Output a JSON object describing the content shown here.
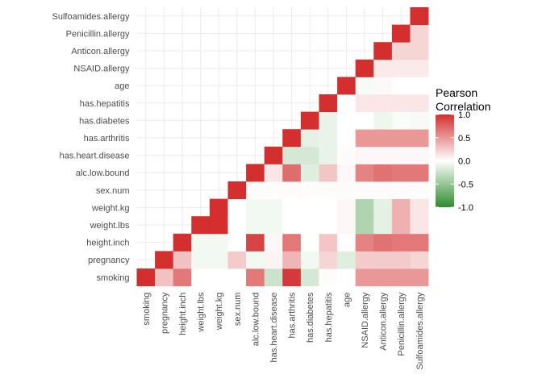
{
  "chart_data": {
    "type": "heatmap",
    "variables": [
      "smoking",
      "pregnancy",
      "height.inch",
      "weight.lbs",
      "weight.kg",
      "sex.num",
      "alc.low.bound",
      "has.heart.disease",
      "has.arthritis",
      "has.diabetes",
      "has.hepatitis",
      "age",
      "NSAID.allergy",
      "Anticon.allergy",
      "Penicillin.allergy",
      "Sulfoamides.allergy"
    ],
    "matrix": [
      [
        1.0,
        0.3,
        0.65,
        0,
        0,
        0,
        0.65,
        -0.25,
        0.95,
        -0.2,
        0.02,
        0,
        0.5,
        0.5,
        0.5,
        0.5
      ],
      [
        null,
        1.0,
        0.3,
        -0.06,
        -0.06,
        0.25,
        -0.06,
        0.06,
        0.35,
        -0.06,
        0.2,
        -0.15,
        0.25,
        0.25,
        0.25,
        0.2
      ],
      [
        null,
        null,
        1.0,
        -0.06,
        -0.06,
        0,
        0.9,
        0.04,
        0.65,
        0,
        0.28,
        0,
        0.6,
        0.68,
        0.65,
        0.65
      ],
      [
        null,
        null,
        null,
        1.0,
        1.0,
        0,
        -0.06,
        -0.06,
        0,
        0,
        0,
        0.04,
        -0.38,
        -0.12,
        0.38,
        0.12
      ],
      [
        null,
        null,
        null,
        null,
        1.0,
        0,
        -0.06,
        -0.06,
        0,
        0,
        0,
        0.04,
        -0.38,
        -0.12,
        0.38,
        0.12
      ],
      [
        null,
        null,
        null,
        null,
        null,
        1.0,
        0.02,
        0.02,
        0.02,
        0.02,
        0.02,
        0.02,
        0.02,
        0.02,
        0.02,
        0.02
      ],
      [
        null,
        null,
        null,
        null,
        null,
        null,
        1.0,
        0.12,
        0.7,
        -0.15,
        0.28,
        0.04,
        0.6,
        0.68,
        0.65,
        0.65
      ],
      [
        null,
        null,
        null,
        null,
        null,
        null,
        null,
        1.0,
        -0.2,
        -0.2,
        -0.1,
        0.02,
        0.04,
        0.04,
        0.04,
        0.04
      ],
      [
        null,
        null,
        null,
        null,
        null,
        null,
        null,
        null,
        1.0,
        -0.12,
        -0.1,
        0,
        0.5,
        0.5,
        0.5,
        0.5
      ],
      [
        null,
        null,
        null,
        null,
        null,
        null,
        null,
        null,
        null,
        1.0,
        -0.1,
        0,
        0,
        -0.08,
        -0.03,
        -0.04
      ],
      [
        null,
        null,
        null,
        null,
        null,
        null,
        null,
        null,
        null,
        null,
        1.0,
        0,
        0.12,
        0.12,
        0.12,
        0.12
      ],
      [
        null,
        null,
        null,
        null,
        null,
        null,
        null,
        null,
        null,
        null,
        null,
        1.0,
        -0.04,
        0.03,
        0,
        0
      ],
      [
        null,
        null,
        null,
        null,
        null,
        null,
        null,
        null,
        null,
        null,
        null,
        null,
        1.0,
        0.1,
        0.1,
        0.1
      ],
      [
        null,
        null,
        null,
        null,
        null,
        null,
        null,
        null,
        null,
        null,
        null,
        null,
        null,
        1.0,
        0.2,
        0.2
      ],
      [
        null,
        null,
        null,
        null,
        null,
        null,
        null,
        null,
        null,
        null,
        null,
        null,
        null,
        null,
        1.0,
        0.2
      ],
      [
        null,
        null,
        null,
        null,
        null,
        null,
        null,
        null,
        null,
        null,
        null,
        null,
        null,
        null,
        null,
        1.0
      ]
    ],
    "legend": {
      "title": "Pearson\nCorrelation",
      "ticks": [
        "1.0",
        "0.5",
        "0.0",
        "-0.5",
        "-1.0"
      ],
      "tick_values": [
        1.0,
        0.5,
        0.0,
        -0.5,
        -1.0
      ],
      "range": [
        -1,
        1
      ],
      "position": "right"
    },
    "colors": {
      "high": "#d32f2f",
      "mid": "#ffffff",
      "low": "#2e8b2e"
    },
    "grid": true
  }
}
